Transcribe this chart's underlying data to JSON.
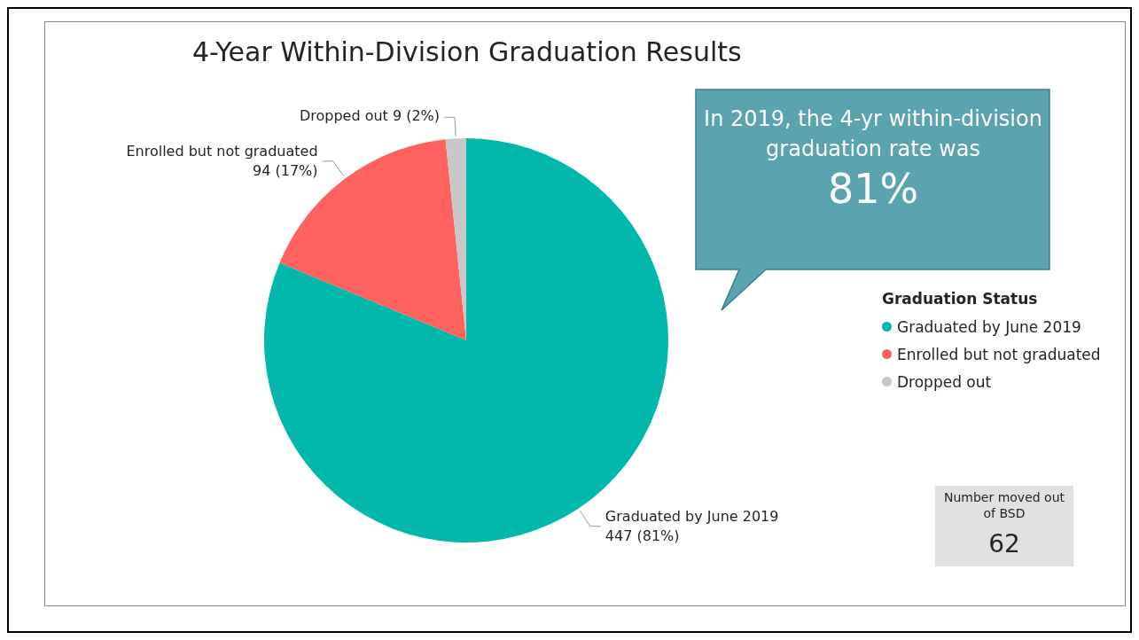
{
  "chart_data": {
    "type": "pie",
    "title": "4-Year Within-Division Graduation Results",
    "categories": [
      "Graduated by June 2019",
      "Enrolled but not graduated",
      "Dropped out"
    ],
    "values": [
      447,
      94,
      9
    ],
    "colors": [
      "#01b8aa",
      "#fd625e",
      "#c8c8c8"
    ],
    "value_labels": [
      "447 (81%)",
      "94 (17%)",
      "9 (2%)"
    ],
    "legend": "right",
    "legend_title": "Graduation Status",
    "annotations": [
      "In 2019, the 4-yr within-division graduation rate was",
      "81%",
      "Number moved out of BSD",
      "62"
    ]
  }
}
